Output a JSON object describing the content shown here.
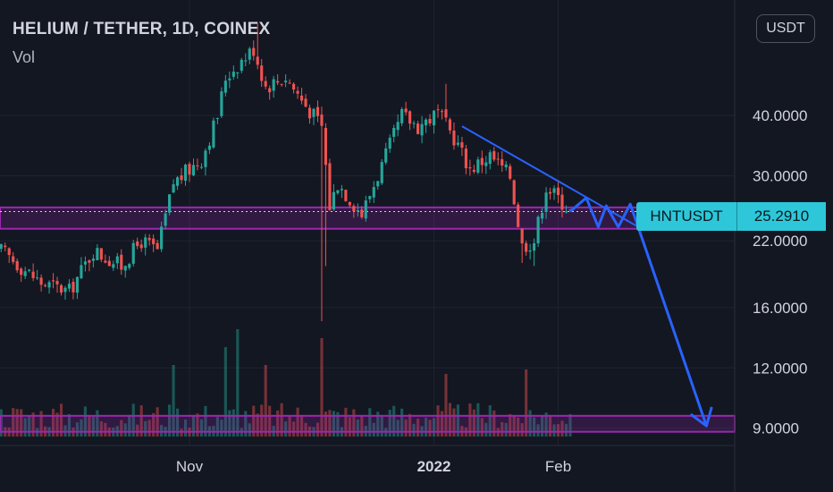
{
  "header": {
    "title": "HELIUM / TETHER, 1D, COINEX",
    "indicator": "Vol",
    "currency_button": "USDT"
  },
  "price_tag": {
    "symbol": "HNTUSDT",
    "price": "25.2910"
  },
  "colors": {
    "background": "#131722",
    "up": "#26a69a",
    "down": "#ef5350",
    "accent_line": "#2962ff",
    "zone": "#9c27b0",
    "tag": "#2dc7d9"
  },
  "chart_data": {
    "type": "candlestick",
    "symbol": "HNTUSDT",
    "interval": "1D",
    "exchange": "COINEX",
    "y_scale": "log",
    "ylim": [
      8.8,
      60
    ],
    "y_ticks": [
      "40.0000",
      "30.0000",
      "22.0000",
      "16.0000",
      "12.0000",
      "9.0000"
    ],
    "x_tick_labels": [
      {
        "label": "Nov",
        "bold": false
      },
      {
        "label": "2022",
        "bold": true
      },
      {
        "label": "Feb",
        "bold": false
      }
    ],
    "last_price": 25.291,
    "close_path": [
      [
        "2021-09-15",
        21.0
      ],
      [
        "2021-09-25",
        18.0
      ],
      [
        "2021-10-02",
        17.3
      ],
      [
        "2021-10-08",
        21.0
      ],
      [
        "2021-10-15",
        19.5
      ],
      [
        "2021-10-20",
        22.0
      ],
      [
        "2021-10-24",
        21.0
      ],
      [
        "2021-10-28",
        29.0
      ],
      [
        "2021-11-04",
        32.5
      ],
      [
        "2021-11-08",
        40.0
      ],
      [
        "2021-11-10",
        48.0
      ],
      [
        "2021-11-14",
        52.0
      ],
      [
        "2021-11-17",
        55.0
      ],
      [
        "2021-11-20",
        46.0
      ],
      [
        "2021-11-25",
        48.0
      ],
      [
        "2021-11-30",
        42.0
      ],
      [
        "2021-12-04",
        38.0
      ],
      [
        "2021-12-06",
        26.0
      ],
      [
        "2021-12-08",
        29.0
      ],
      [
        "2021-12-14",
        25.0
      ],
      [
        "2021-12-20",
        33.0
      ],
      [
        "2021-12-24",
        40.0
      ],
      [
        "2021-12-28",
        38.0
      ],
      [
        "2022-01-02",
        40.5
      ],
      [
        "2022-01-06",
        36.0
      ],
      [
        "2022-01-10",
        31.0
      ],
      [
        "2022-01-15",
        33.0
      ],
      [
        "2022-01-20",
        30.0
      ],
      [
        "2022-01-23",
        21.5
      ],
      [
        "2022-01-26",
        22.0
      ],
      [
        "2022-01-29",
        28.5
      ],
      [
        "2022-02-02",
        26.5
      ],
      [
        "2022-02-04",
        25.3
      ]
    ],
    "volume": "bars at bottom (unscaled)",
    "annotations": [
      {
        "type": "zone",
        "lower": 23.3,
        "upper": 25.8,
        "color": "#9c27b0"
      },
      {
        "type": "dotted_line",
        "value": 25.291
      },
      {
        "type": "zone",
        "lower": 8.85,
        "upper": 9.55,
        "color": "#9c27b0"
      },
      {
        "type": "trendline",
        "from": [
          "2022-01-08",
          38.0
        ],
        "to": [
          "2022-02-21",
          23.5
        ]
      },
      {
        "type": "projection_path",
        "points": [
          [
            "2022-02-04",
            25.3
          ],
          [
            "2022-02-08",
            27.0
          ],
          [
            "2022-02-11",
            23.5
          ],
          [
            "2022-02-13",
            26.0
          ],
          [
            "2022-02-16",
            23.5
          ],
          [
            "2022-02-19",
            26.2
          ],
          [
            "2022-03-10",
            9.1
          ]
        ]
      }
    ]
  }
}
